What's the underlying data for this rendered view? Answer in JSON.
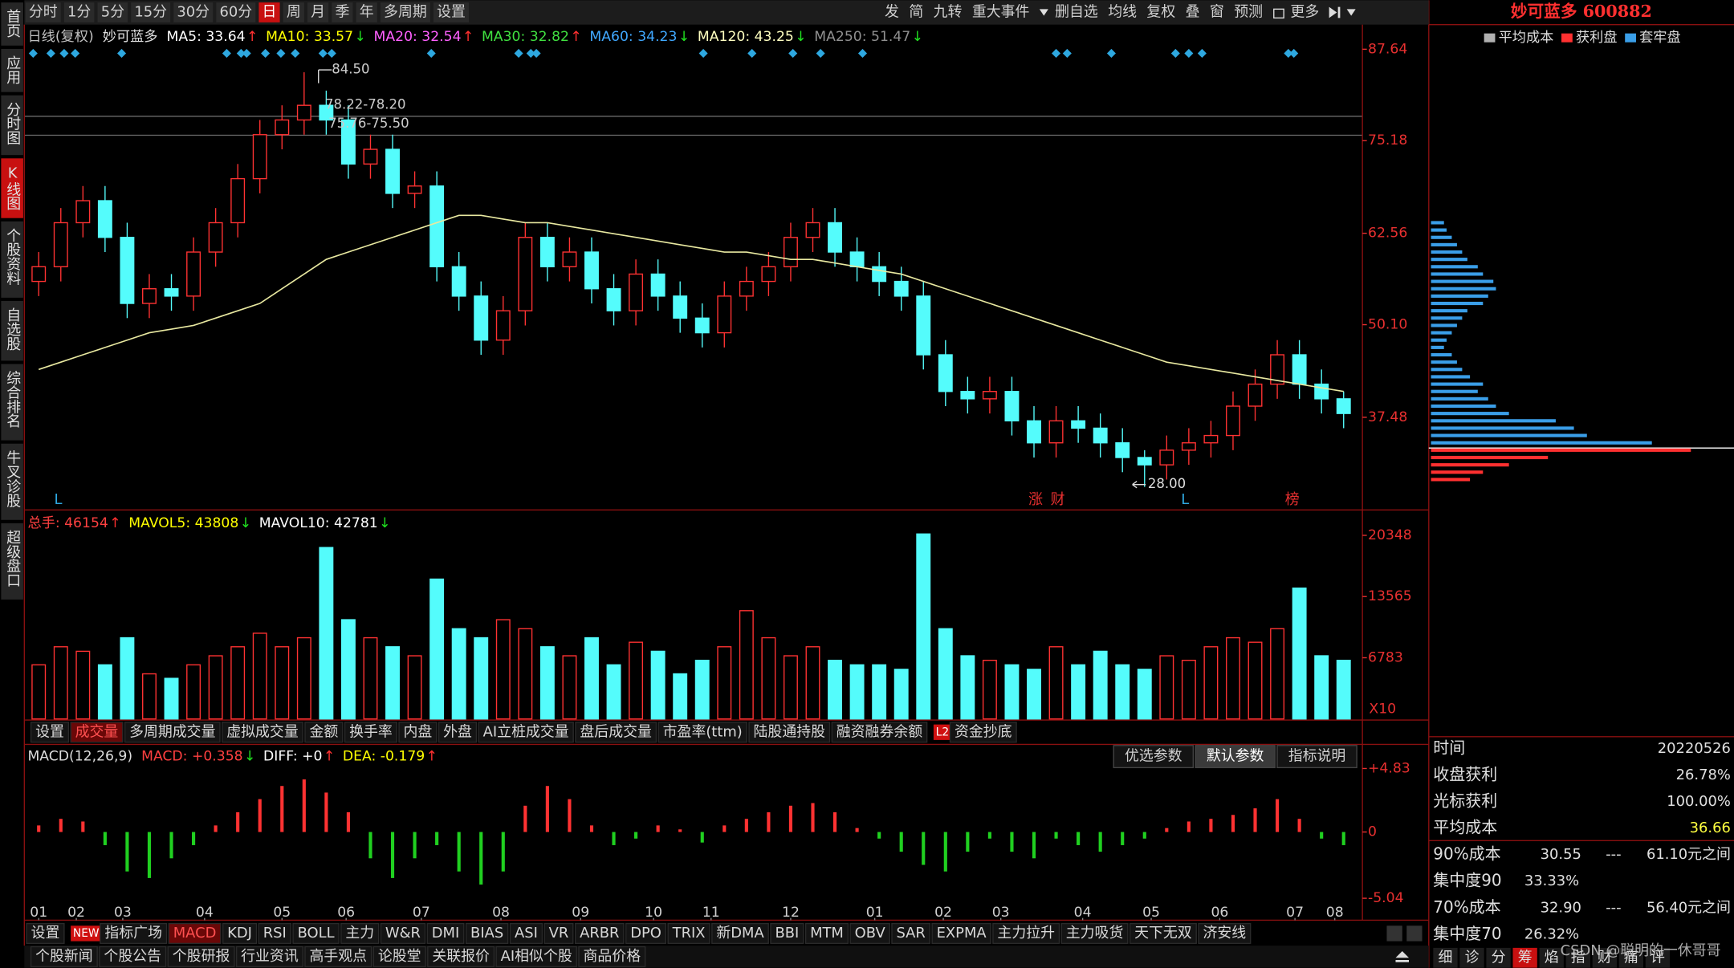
{
  "toolbar": {
    "periods": [
      "分时",
      "1分",
      "5分",
      "15分",
      "30分",
      "60分",
      "日",
      "周",
      "月",
      "季",
      "年",
      "多周期",
      "设置"
    ],
    "active": 6,
    "tools": [
      "发",
      "简",
      "九转",
      "重大事件",
      "删自选",
      "均线",
      "复权",
      "叠",
      "窗",
      "预测",
      "更多"
    ]
  },
  "sidebar": {
    "tabs": [
      "首页",
      "应用",
      "分时图",
      "K线图",
      "个股资料",
      "自选股",
      "综合排名",
      "牛叉诊股",
      "超级盘口"
    ],
    "active": 3
  },
  "chart_data": [
    {
      "type": "candlestick",
      "title": "日线(复权)",
      "stock": "妙可蓝多",
      "legend": [
        {
          "name": "MA5: 33.64",
          "trend": "↑",
          "color": "#ffffff"
        },
        {
          "name": "MA10: 33.57",
          "trend": "↓",
          "color": "#ffff00"
        },
        {
          "name": "MA20: 32.54",
          "trend": "↑",
          "color": "#ff60ff"
        },
        {
          "name": "MA30: 32.82",
          "trend": "↑",
          "color": "#40e040"
        },
        {
          "name": "MA60: 34.23",
          "trend": "↓",
          "color": "#40a8ff"
        },
        {
          "name": "MA120: 43.25",
          "trend": "↓",
          "color": "#ffffc0"
        },
        {
          "name": "MA250: 51.47",
          "trend": "↓",
          "color": "#909090"
        }
      ],
      "ylim": [
        25,
        91
      ],
      "yticks": [
        37.48,
        {
          "value": 50.1,
          "label": "50.10"
        },
        62.56,
        75.18,
        87.64
      ],
      "open": [
        56,
        58,
        64,
        67,
        62,
        53,
        55,
        54,
        60,
        64,
        70,
        76,
        78,
        80,
        78,
        72,
        74,
        68,
        69,
        58,
        54,
        48,
        52,
        62,
        58,
        60,
        55,
        52,
        57,
        54,
        51,
        49,
        54,
        56,
        58,
        62,
        64,
        60,
        58,
        56,
        54,
        46,
        41,
        40,
        41,
        37,
        34,
        37,
        36,
        34,
        32,
        31,
        33,
        34,
        35,
        39,
        42,
        46,
        42,
        40
      ],
      "high": [
        60,
        66,
        69,
        69,
        64,
        57,
        57,
        62,
        66,
        72,
        78,
        80,
        84.5,
        82,
        80,
        76,
        76,
        71,
        71,
        60,
        56,
        54,
        64,
        64,
        62,
        62,
        57,
        59,
        59,
        56,
        53,
        56,
        58,
        60,
        64,
        66,
        66,
        62,
        60,
        58,
        56,
        48,
        43,
        43,
        43,
        39,
        39,
        39,
        38,
        36,
        33,
        35,
        36,
        37,
        41,
        44,
        48,
        48,
        44,
        41
      ],
      "low": [
        54,
        56,
        62,
        60,
        51,
        51,
        52,
        52,
        58,
        62,
        68,
        74,
        76,
        76,
        70,
        70,
        66,
        66,
        56,
        52,
        46,
        46,
        50,
        56,
        56,
        53,
        50,
        50,
        52,
        49,
        47,
        47,
        52,
        54,
        56,
        60,
        58,
        56,
        54,
        52,
        44,
        39,
        38,
        38,
        35,
        32,
        32,
        34,
        32,
        30,
        28,
        29,
        31,
        32,
        33,
        37,
        40,
        40,
        38,
        36
      ],
      "close": [
        58,
        64,
        67,
        62,
        53,
        55,
        54,
        60,
        64,
        70,
        76,
        78,
        80,
        78,
        72,
        74,
        68,
        69,
        58,
        54,
        48,
        52,
        62,
        58,
        60,
        55,
        52,
        57,
        54,
        51,
        49,
        54,
        56,
        58,
        62,
        64,
        60,
        58,
        56,
        54,
        46,
        41,
        40,
        41,
        37,
        34,
        37,
        36,
        34,
        32,
        31,
        33,
        34,
        35,
        39,
        42,
        46,
        42,
        40,
        38
      ],
      "up_color": "#ff3232",
      "down_color": "#54fcfc",
      "series": [
        {
          "color": "#e8e8a0",
          "values": [
            44,
            45,
            46,
            47,
            48,
            49,
            49.5,
            50,
            51,
            52,
            53,
            55,
            57,
            59,
            60,
            61,
            62,
            63,
            64,
            65,
            65,
            64.5,
            64,
            64,
            63.5,
            63,
            62.5,
            62,
            61.5,
            61,
            60.5,
            60,
            60,
            59.5,
            59,
            59,
            58.5,
            58,
            57.5,
            57,
            56,
            55,
            54,
            53,
            52,
            51,
            50,
            49,
            48,
            47,
            46,
            45,
            44.5,
            44,
            43.5,
            43,
            42.5,
            42,
            41.5,
            41
          ]
        }
      ],
      "annotations": [
        "84.50",
        "78.22-78.20",
        "75.76-75.50",
        "28.00",
        "L",
        "涨",
        "财",
        "L",
        "榜"
      ]
    },
    {
      "type": "bar",
      "header": [
        {
          "name": "总手: 46154",
          "trend": "↑",
          "color": "#ff4040"
        },
        {
          "name": "MAVOL5: 43808",
          "trend": "↓",
          "color": "#ffff00"
        },
        {
          "name": "MAVOL10: 42781",
          "trend": "↓",
          "color": "#ffffff"
        }
      ],
      "ylim": [
        0,
        23036
      ],
      "yticks": [
        6783,
        13565,
        20348
      ],
      "unit": "X10",
      "values": [
        6000,
        8000,
        7500,
        6000,
        9000,
        5000,
        4500,
        6000,
        7000,
        8000,
        9500,
        8000,
        9000,
        19000,
        11000,
        9000,
        8000,
        7000,
        15500,
        10000,
        9000,
        11000,
        10000,
        8000,
        7000,
        9000,
        6000,
        8500,
        7500,
        5000,
        6500,
        8000,
        12000,
        9000,
        7000,
        8000,
        6500,
        6000,
        6000,
        5500,
        20500,
        10000,
        7000,
        6500,
        6000,
        5500,
        8000,
        6000,
        7500,
        6000,
        5500,
        7000,
        6500,
        8000,
        9000,
        8500,
        10000,
        14500,
        7000,
        6500
      ]
    },
    {
      "type": "bar",
      "header": [
        {
          "name": "MACD(12,26,9)",
          "trend": "",
          "color": "#dddddd"
        },
        {
          "name": "MACD: +0.358",
          "trend": "↓",
          "color": "#ff4040"
        },
        {
          "name": "DIFF: +0",
          "trend": "↑",
          "color": "#ffffff"
        },
        {
          "name": "DEA: -0.179",
          "trend": "↑",
          "color": "#ffff00"
        }
      ],
      "buttons": [
        "优选参数",
        "默认参数",
        "指标说明"
      ],
      "active_button": 1,
      "ylim": [
        -6.54,
        6.58
      ],
      "yticks": [
        {
          "value": 4.83,
          "label": "+4.83"
        },
        0,
        -5.04
      ],
      "pos_color": "#ff3232",
      "neg_color": "#20d020",
      "values": [
        0.5,
        1,
        0.8,
        -1,
        -3,
        -3.5,
        -2,
        -1,
        0.5,
        1.5,
        2.5,
        3.5,
        4.0,
        3.0,
        1.5,
        -2,
        -3.5,
        -2,
        -1,
        -3,
        -4,
        -3,
        2,
        3.5,
        2.5,
        0.5,
        -1,
        -0.5,
        0.5,
        0.2,
        -0.8,
        0.5,
        1,
        1.5,
        2.0,
        2.2,
        1.5,
        0.3,
        -0.5,
        -1.5,
        -2.5,
        -3,
        -1.5,
        -0.5,
        -1.5,
        -2,
        -0.5,
        -1,
        -1.5,
        -1,
        -0.5,
        0.3,
        0.8,
        1.0,
        1.3,
        1.8,
        2.5,
        1.0,
        -0.5,
        -1.0
      ],
      "xticks": [
        {
          "value": 0,
          "label": "01"
        },
        {
          "value": 1.7,
          "label": "02"
        },
        {
          "value": 3.8,
          "label": "03"
        },
        {
          "value": 7.5,
          "label": "04"
        },
        {
          "value": 11,
          "label": "05"
        },
        {
          "value": 13.9,
          "label": "06"
        },
        {
          "value": 17.3,
          "label": "07"
        },
        {
          "value": 20.9,
          "label": "08"
        },
        {
          "value": 24.5,
          "label": "09"
        },
        {
          "value": 27.8,
          "label": "10"
        },
        {
          "value": 30.4,
          "label": "11"
        },
        {
          "value": 34,
          "label": "12"
        },
        {
          "value": 37.8,
          "label": "01"
        },
        {
          "value": 40.9,
          "label": "02"
        },
        {
          "value": 43.5,
          "label": "03"
        },
        {
          "value": 47.2,
          "label": "04"
        },
        {
          "value": 50.3,
          "label": "05"
        },
        {
          "value": 53.4,
          "label": "06"
        },
        {
          "value": 56.8,
          "label": "07"
        },
        {
          "value": 58.6,
          "label": "08"
        }
      ]
    },
    {
      "type": "hbar",
      "legend_avg": "平均成本",
      "avg_color": "#b0b0b0",
      "ylim": [
        25,
        91
      ],
      "xlim": [
        0,
        100
      ],
      "y": [
        29,
        30,
        31,
        32,
        33,
        34,
        35,
        36,
        37,
        38,
        39,
        40,
        41,
        42,
        43,
        44,
        45,
        46,
        47,
        48,
        49,
        50,
        51,
        52,
        53,
        54,
        55,
        56,
        57,
        58,
        59,
        60,
        61,
        62,
        63,
        64
      ],
      "series": [
        {
          "name": "获利盘",
          "color": "#ff3030",
          "values": [
            15,
            20,
            30,
            45,
            100,
            null,
            null,
            null,
            null,
            null,
            null,
            null,
            null,
            null,
            null,
            null,
            null,
            null,
            null,
            null,
            null,
            null,
            null,
            null,
            null,
            null,
            null,
            null,
            null,
            null,
            null,
            null,
            null,
            null,
            null,
            null
          ]
        },
        {
          "name": "套牢盘",
          "color": "#3a9ee8",
          "values": [
            null,
            null,
            null,
            null,
            null,
            85,
            60,
            55,
            48,
            30,
            25,
            22,
            18,
            20,
            15,
            12,
            10,
            8,
            5,
            6,
            8,
            10,
            12,
            14,
            20,
            22,
            25,
            24,
            20,
            18,
            14,
            12,
            10,
            8,
            6,
            5
          ]
        }
      ]
    }
  ],
  "volume_tabs": {
    "items": [
      "设置",
      "成交量",
      "多周期成交量",
      "虚拟成交量",
      "金额",
      "换手率",
      "内盘",
      "外盘",
      "AI立桩成交量",
      "盘后成交量",
      "市盈率(ttm)",
      "陆股通持股",
      "融资融券余额",
      "资金抄底"
    ],
    "badge": "L2",
    "active": 1
  },
  "indicator_tabs": {
    "items": [
      "设置",
      "指标广场",
      "MACD",
      "KDJ",
      "RSI",
      "BOLL",
      "主力",
      "W&R",
      "DMI",
      "BIAS",
      "ASI",
      "VR",
      "ARBR",
      "DPO",
      "TRIX",
      "新DMA",
      "BBI",
      "MTM",
      "OBV",
      "SAR",
      "EXPMA",
      "主力拉升",
      "主力吸货",
      "天下无双",
      "济安线"
    ],
    "badge": "NEW",
    "active": 2
  },
  "news_tabs": [
    "个股新闻",
    "个股公告",
    "个股研报",
    "行业资讯",
    "高手观点",
    "论股堂",
    "关联报价",
    "AI相似个股",
    "商品价格"
  ],
  "panel": {
    "title": "妙可蓝多 600882",
    "rows": [
      [
        "时间",
        "20220526"
      ],
      [
        "收盘获利",
        "26.78%"
      ],
      [
        "光标获利",
        "100.00%"
      ],
      [
        "平均成本",
        "36.66"
      ],
      [
        "90%成本",
        "30.55",
        "---",
        "61.10元之间"
      ],
      [
        "集中度90",
        "33.33%"
      ],
      [
        "70%成本",
        "32.90",
        "---",
        "56.40元之间"
      ],
      [
        "集中度70",
        "26.32%"
      ]
    ],
    "tabs": [
      "细",
      "诊",
      "分",
      "筹",
      "焰",
      "指",
      "财",
      "痛",
      "评"
    ],
    "active": 3
  },
  "watermark": "CSDN @聪明的一休哥哥"
}
